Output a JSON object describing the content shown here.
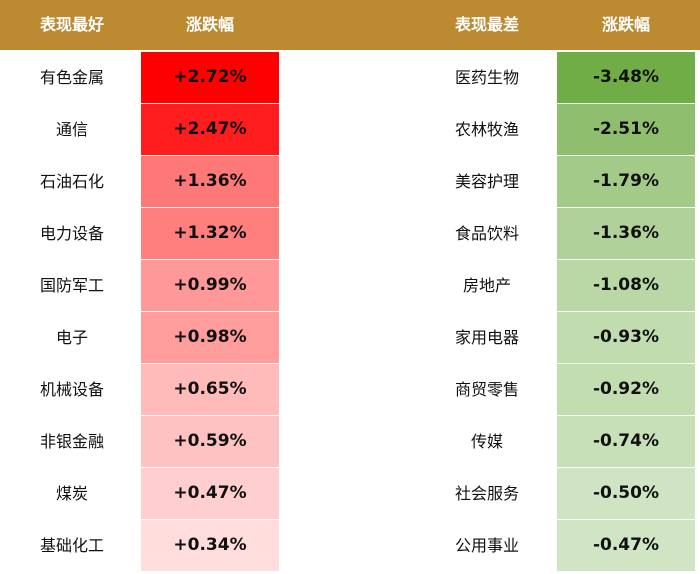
{
  "header": {
    "left_name": "表现最好",
    "left_change": "涨跌幅",
    "right_name": "表现最差",
    "right_change": "涨跌幅"
  },
  "table": {
    "best": [
      [
        "有色金属",
        "+2.72%"
      ],
      [
        "通信",
        "+2.47%"
      ],
      [
        "石油石化",
        "+1.36%"
      ],
      [
        "电力设备",
        "+1.32%"
      ],
      [
        "国防军工",
        "+0.99%"
      ],
      [
        "电子",
        "+0.98%"
      ],
      [
        "机械设备",
        "+0.65%"
      ],
      [
        "非银金融",
        "+0.59%"
      ],
      [
        "煤炭",
        "+0.47%"
      ],
      [
        "基础化工",
        "+0.34%"
      ]
    ],
    "worst": [
      [
        "医药生物",
        "-3.48%"
      ],
      [
        "农林牧渔",
        "-2.51%"
      ],
      [
        "美容护理",
        "-1.79%"
      ],
      [
        "食品饮料",
        "-1.36%"
      ],
      [
        "房地产",
        "-1.08%"
      ],
      [
        "家用电器",
        "-0.93%"
      ],
      [
        "商贸零售",
        "-0.92%"
      ],
      [
        "传媒",
        "-0.74%"
      ],
      [
        "社会服务",
        "-0.50%"
      ],
      [
        "公用事业",
        "-0.47%"
      ]
    ]
  }
}
